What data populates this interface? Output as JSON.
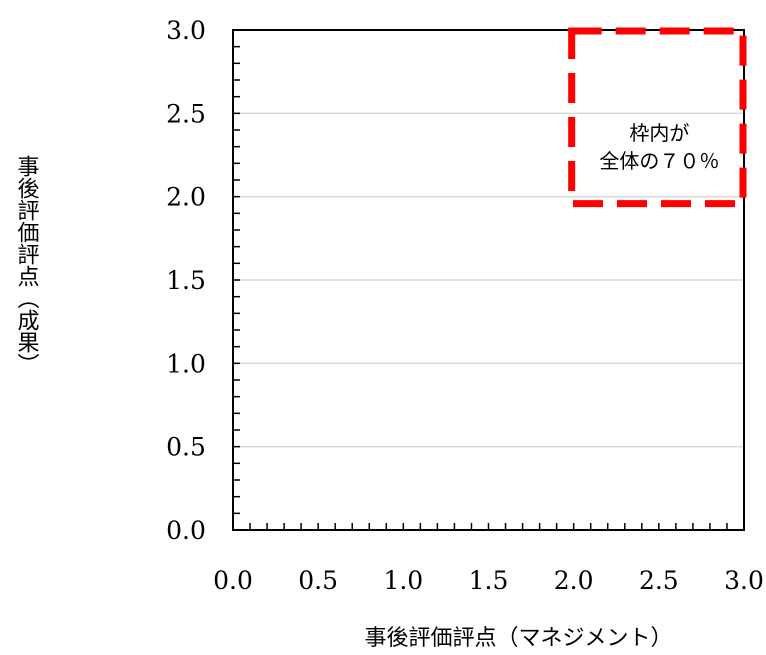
{
  "chart_data": {
    "type": "scatter",
    "title": "",
    "xlabel": "事後評価評点（マネジメント）",
    "ylabel": "事後評価評点（成果）",
    "xlim": [
      0.0,
      3.0
    ],
    "ylim": [
      0.0,
      3.0
    ],
    "x_ticks": [
      "0.0",
      "0.5",
      "1.0",
      "1.5",
      "2.0",
      "2.5",
      "3.0"
    ],
    "y_ticks": [
      "0.0",
      "0.5",
      "1.0",
      "1.5",
      "2.0",
      "2.5",
      "3.0"
    ],
    "grid": "horizontal",
    "series": [],
    "annotation": {
      "region": {
        "x": [
          2.0,
          3.0
        ],
        "y": [
          2.0,
          3.0
        ]
      },
      "color": "#ff0000",
      "lines": [
        "枠内が",
        "全体の７０％"
      ]
    }
  }
}
